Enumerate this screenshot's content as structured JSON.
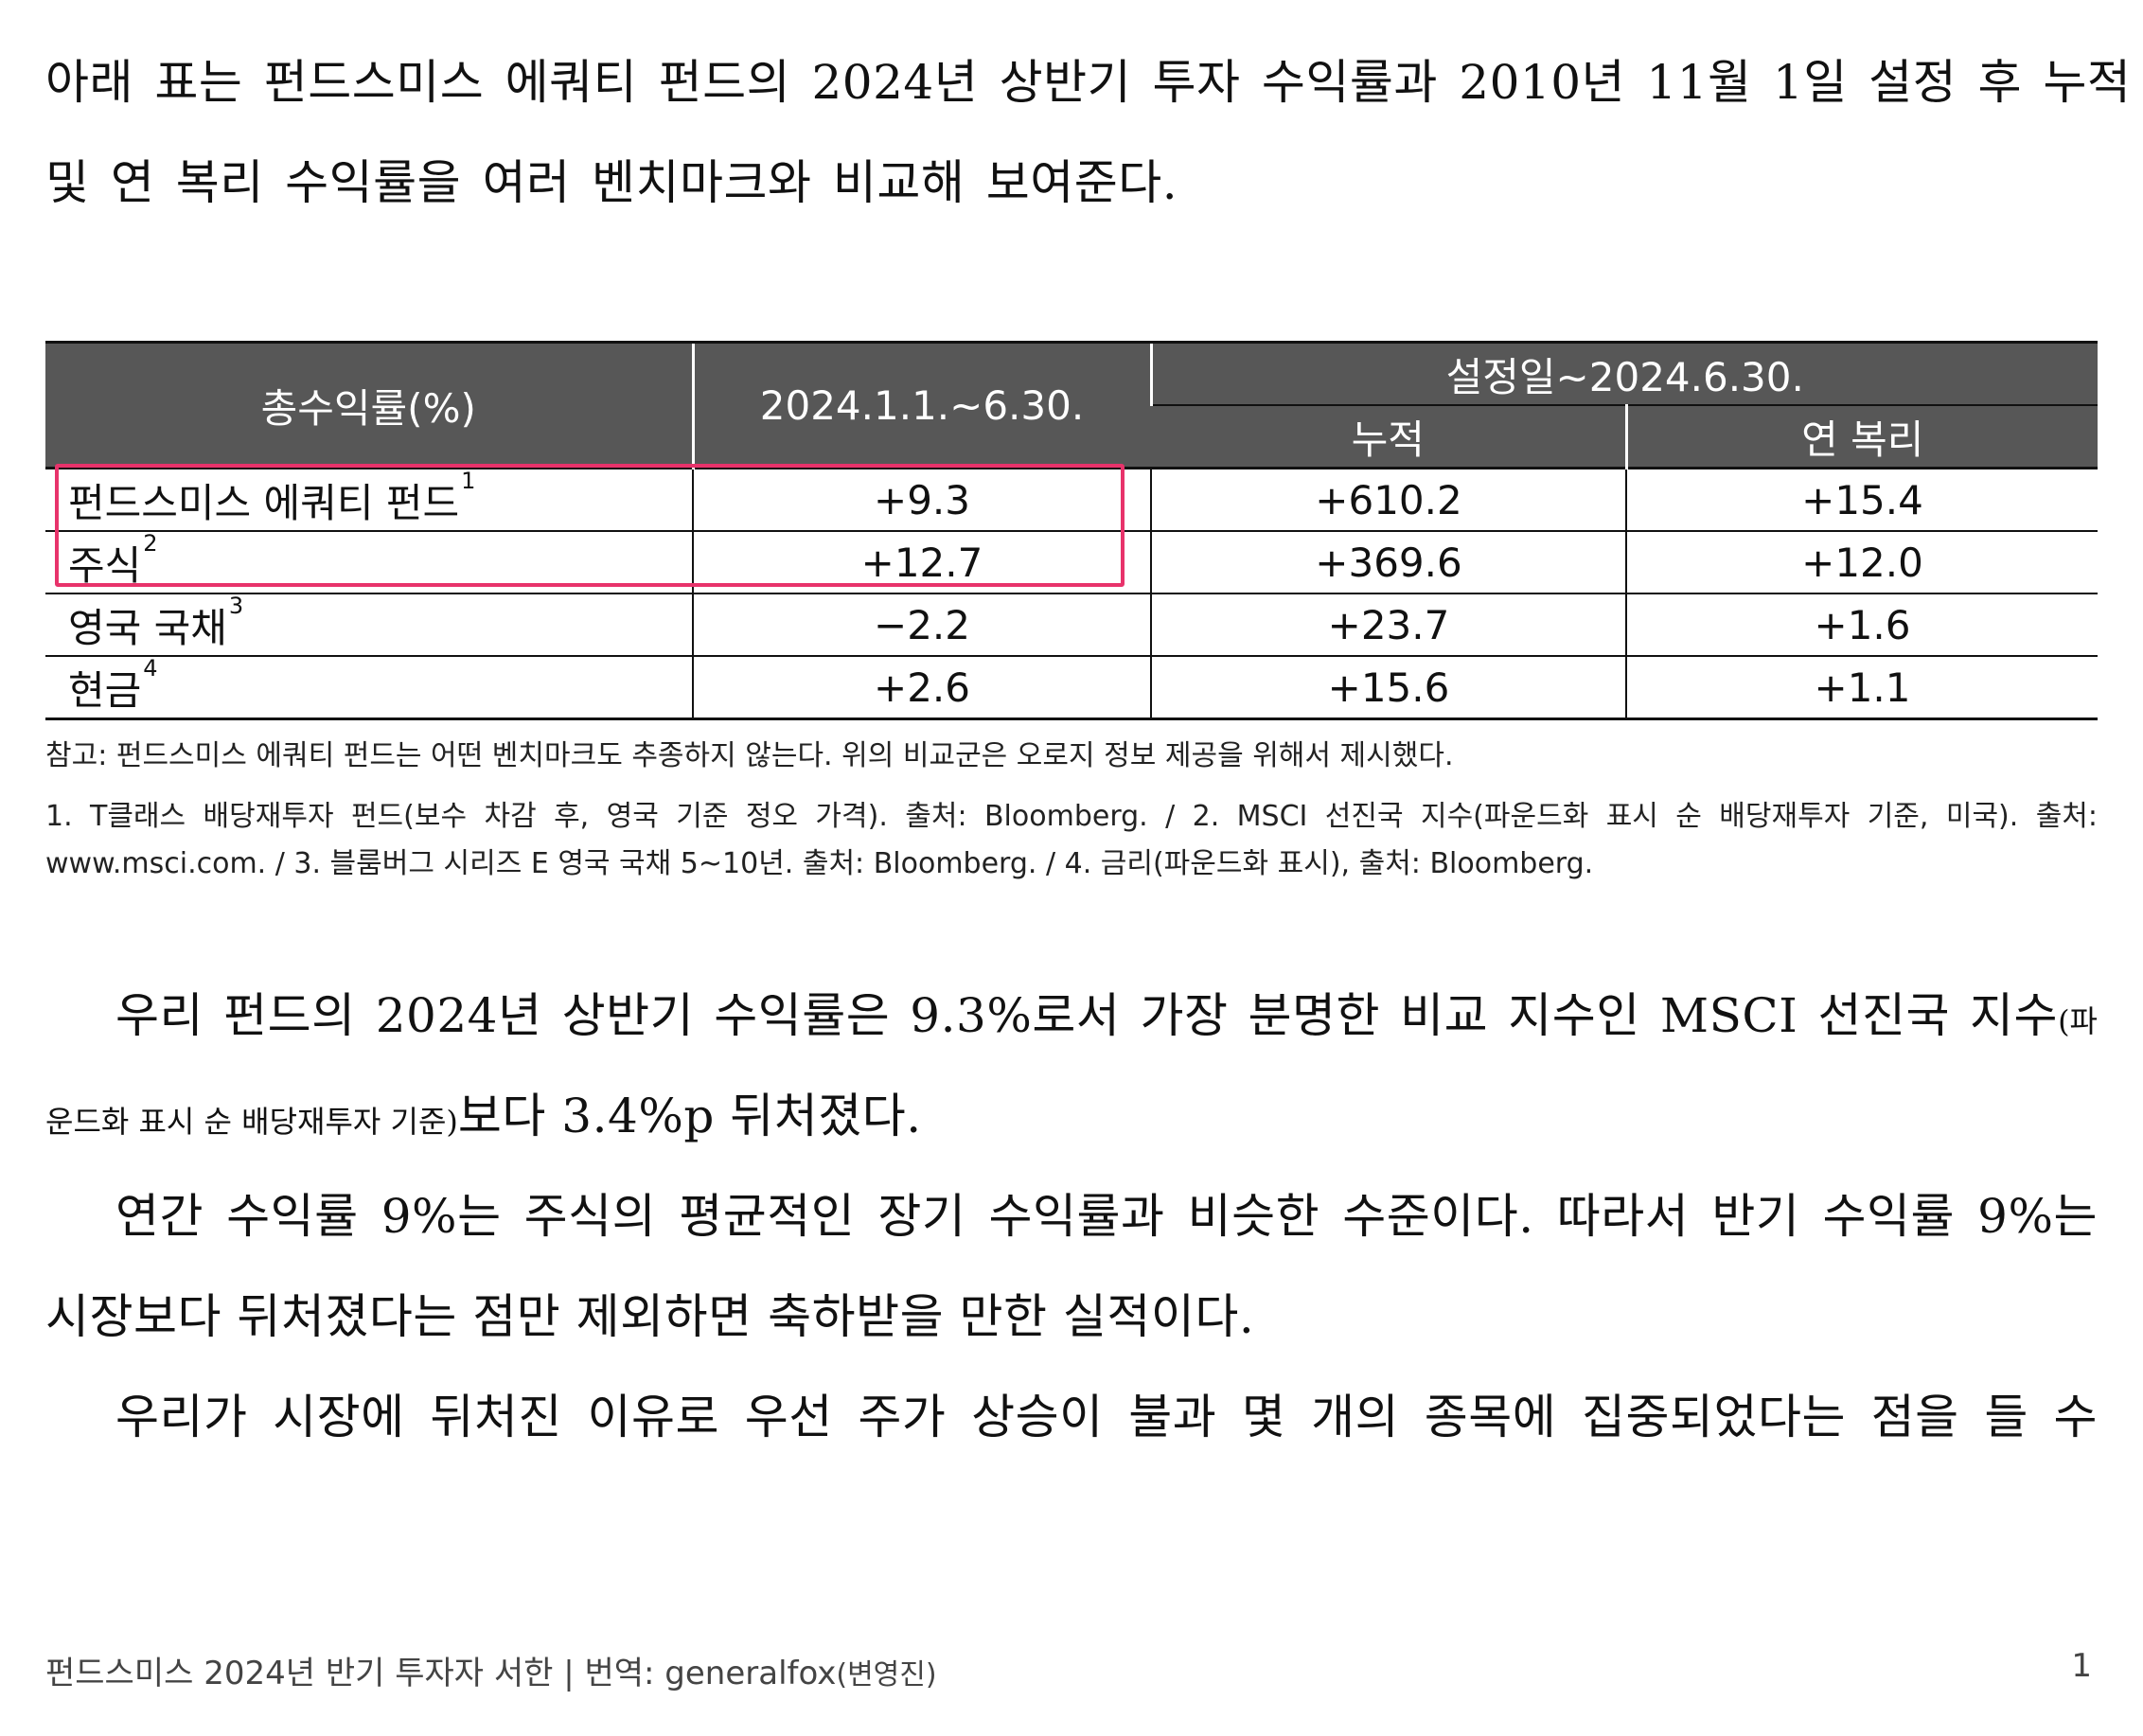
{
  "intro": {
    "line1": "아래 표는 펀드스미스 에쿼티 펀드의 2024년 상반기 투자 수익률과 2010년 11월 1일 설정 후 누적",
    "line2": "및 연 복리 수익률을 여러 벤치마크와 비교해 보여준다."
  },
  "table": {
    "header": {
      "col1": "총수익률(%)",
      "col2": "2024.1.1.~6.30.",
      "group": "설정일~2024.6.30.",
      "col3": "누적",
      "col4": "연 복리"
    },
    "rows": [
      {
        "name": "펀드스미스 에쿼티 펀드",
        "note": "1",
        "h1": "+9.3",
        "cum": "+610.2",
        "ann": "+15.4"
      },
      {
        "name": "주식",
        "note": "2",
        "h1": "+12.7",
        "cum": "+369.6",
        "ann": "+12.0"
      },
      {
        "name": "영국 국채",
        "note": "3",
        "h1": "−2.2",
        "cum": "+23.7",
        "ann": "+1.6"
      },
      {
        "name": "현금",
        "note": "4",
        "h1": "+2.6",
        "cum": "+15.6",
        "ann": "+1.1"
      }
    ],
    "highlight_color": "#e8336b",
    "header_bg": "#575757"
  },
  "notes": {
    "note_main": "참고: 펀드스미스 에쿼티 펀드는 어떤 벤치마크도 추종하지 않는다. 위의 비교군은 오로지 정보 제공을 위해서 제시했다.",
    "sources": "1. T클래스 배당재투자 펀드(보수 차감 후, 영국 기준 정오 가격). 출처: Bloomberg. / 2. MSCI 선진국 지수(파운드화 표시 순 배당재투자 기준, 미국). 출처: www.msci.com. / 3. 블룸버그 시리즈 E 영국 국채 5~10년. 출처: Bloomberg. / 4. 금리(파운드화 표시), 출처: Bloomberg."
  },
  "body": {
    "p1_line1_a": "우리 펀드의 2024년 상반기 수익률은 9.3%로서 가장 분명한 비교 지수인 MSCI 선진국 지수",
    "p1_line1_b": "(파",
    "p1_line2_a": "운드화 표시 순 배당재투자 기준)",
    "p1_line2_b": "보다 3.4%p 뒤처졌다.",
    "p2_line1": "연간 수익률 9%는 주식의 평균적인 장기 수익률과 비슷한 수준이다. 따라서 반기 수익률 9%는",
    "p2_line2": "시장보다 뒤처졌다는 점만 제외하면 축하받을 만한 실적이다.",
    "p3_line1": "우리가 시장에 뒤처진 이유로 우선 주가 상승이 불과 몇 개의 종목에 집중되었다는 점을 들 수"
  },
  "footer": {
    "title": "펀드스미스 2024년 반기 투자자 서한 | 번역: generalfox",
    "translator": "(변영진)",
    "page_number": "1"
  }
}
